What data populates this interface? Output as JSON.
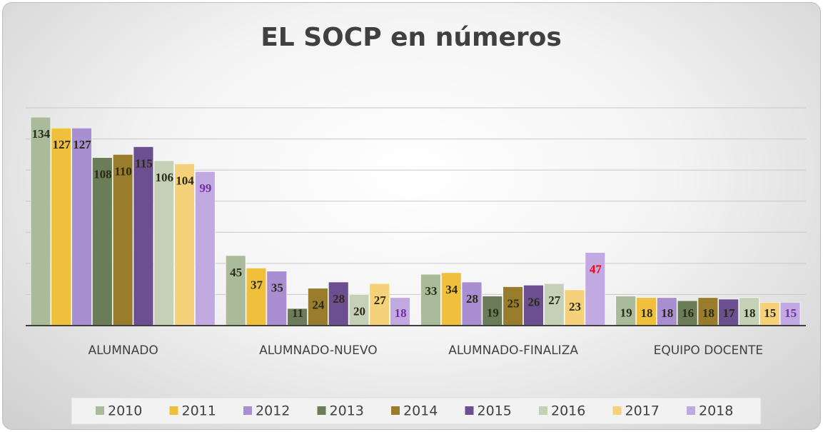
{
  "chart_data": {
    "type": "bar",
    "title": "EL SOCP en números",
    "categories": [
      "ALUMNADO",
      "ALUMNADO-NUEVO",
      "ALUMNADO-FINALIZA",
      "EQUIPO DOCENTE"
    ],
    "series": [
      {
        "name": "2010",
        "color": "#a9bb98",
        "values": [
          134,
          45,
          33,
          19
        ]
      },
      {
        "name": "2011",
        "color": "#f0c03c",
        "values": [
          127,
          37,
          34,
          18
        ]
      },
      {
        "name": "2012",
        "color": "#a98fd2",
        "values": [
          127,
          35,
          28,
          18
        ]
      },
      {
        "name": "2013",
        "color": "#6a7d58",
        "values": [
          108,
          11,
          19,
          16
        ]
      },
      {
        "name": "2014",
        "color": "#997d2c",
        "values": [
          110,
          24,
          25,
          18
        ]
      },
      {
        "name": "2015",
        "color": "#6b4f90",
        "values": [
          115,
          28,
          26,
          17
        ]
      },
      {
        "name": "2016",
        "color": "#c4d1b6",
        "values": [
          106,
          20,
          27,
          18
        ]
      },
      {
        "name": "2017",
        "color": "#f5d27a",
        "values": [
          104,
          27,
          23,
          15
        ]
      },
      {
        "name": "2018",
        "color": "#c1aae2",
        "values": [
          99,
          18,
          47,
          15
        ],
        "label_colors": [
          "#7030a0",
          "#7030a0",
          "#ff0000",
          "#7030a0"
        ]
      }
    ],
    "ylim": [
      0,
      140
    ],
    "yticks": [
      0,
      20,
      40,
      60,
      80,
      100,
      120,
      140
    ],
    "grid": true,
    "legend": "bottom"
  }
}
